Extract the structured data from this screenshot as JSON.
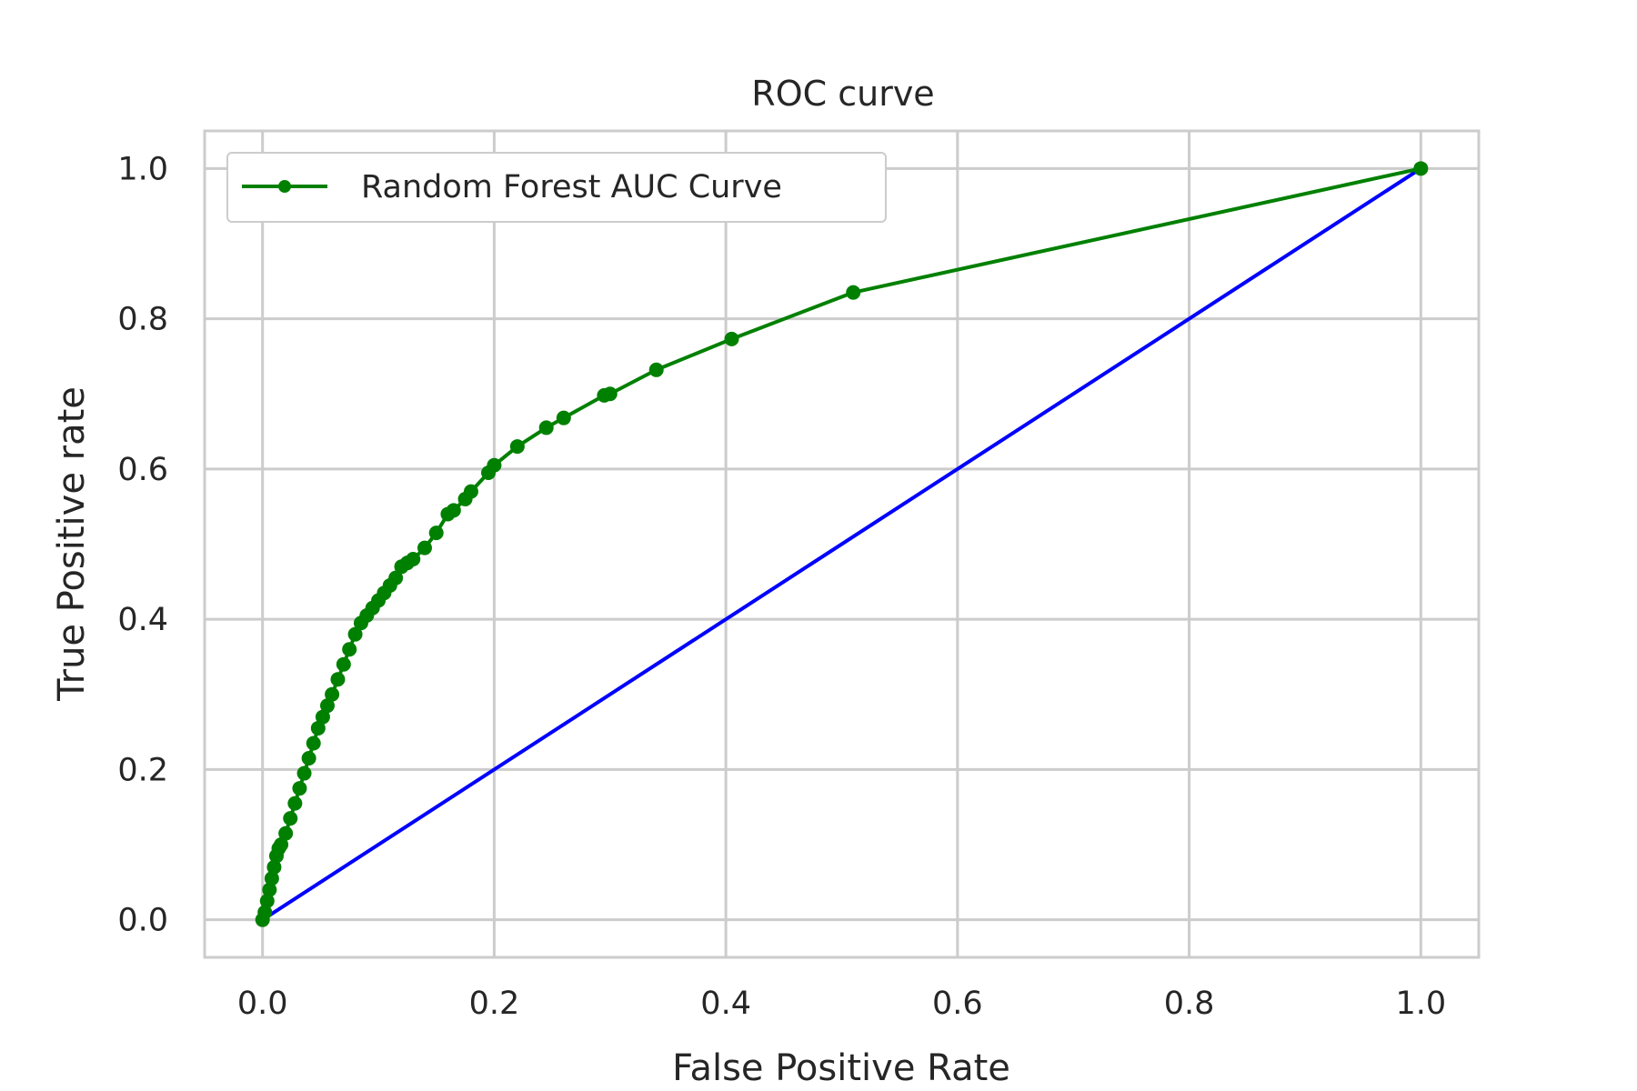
{
  "chart_data": {
    "type": "line",
    "title": "ROC curve",
    "xlabel": "False Positive Rate",
    "ylabel": "True Positive rate",
    "xlim": [
      -0.05,
      1.05
    ],
    "ylim": [
      -0.05,
      1.05
    ],
    "xticks": [
      "0.0",
      "0.2",
      "0.4",
      "0.6",
      "0.8",
      "1.0"
    ],
    "yticks": [
      "0.0",
      "0.2",
      "0.4",
      "0.6",
      "0.8",
      "1.0"
    ],
    "grid": true,
    "legend_position": "top-left",
    "series": [
      {
        "name": "Random Forest AUC Curve",
        "color": "#008000",
        "marker": "circle",
        "x": [
          0.0,
          0.002,
          0.004,
          0.006,
          0.008,
          0.01,
          0.012,
          0.014,
          0.016,
          0.02,
          0.024,
          0.028,
          0.032,
          0.036,
          0.04,
          0.044,
          0.048,
          0.052,
          0.056,
          0.06,
          0.065,
          0.07,
          0.075,
          0.08,
          0.085,
          0.09,
          0.095,
          0.1,
          0.105,
          0.11,
          0.115,
          0.12,
          0.125,
          0.13,
          0.14,
          0.15,
          0.16,
          0.165,
          0.175,
          0.18,
          0.195,
          0.2,
          0.22,
          0.245,
          0.26,
          0.295,
          0.3,
          0.34,
          0.405,
          0.51,
          1.0
        ],
        "y": [
          0.0,
          0.01,
          0.025,
          0.04,
          0.055,
          0.07,
          0.085,
          0.095,
          0.1,
          0.115,
          0.135,
          0.155,
          0.175,
          0.195,
          0.215,
          0.235,
          0.255,
          0.27,
          0.285,
          0.3,
          0.32,
          0.34,
          0.36,
          0.38,
          0.395,
          0.405,
          0.415,
          0.425,
          0.435,
          0.445,
          0.455,
          0.47,
          0.475,
          0.48,
          0.495,
          0.515,
          0.54,
          0.545,
          0.56,
          0.57,
          0.595,
          0.605,
          0.63,
          0.655,
          0.668,
          0.698,
          0.7,
          0.732,
          0.773,
          0.835,
          1.0
        ]
      },
      {
        "name": "",
        "color": "#0000ff",
        "marker": "none",
        "x": [
          0.0,
          1.0
        ],
        "y": [
          0.0,
          1.0
        ]
      }
    ]
  }
}
